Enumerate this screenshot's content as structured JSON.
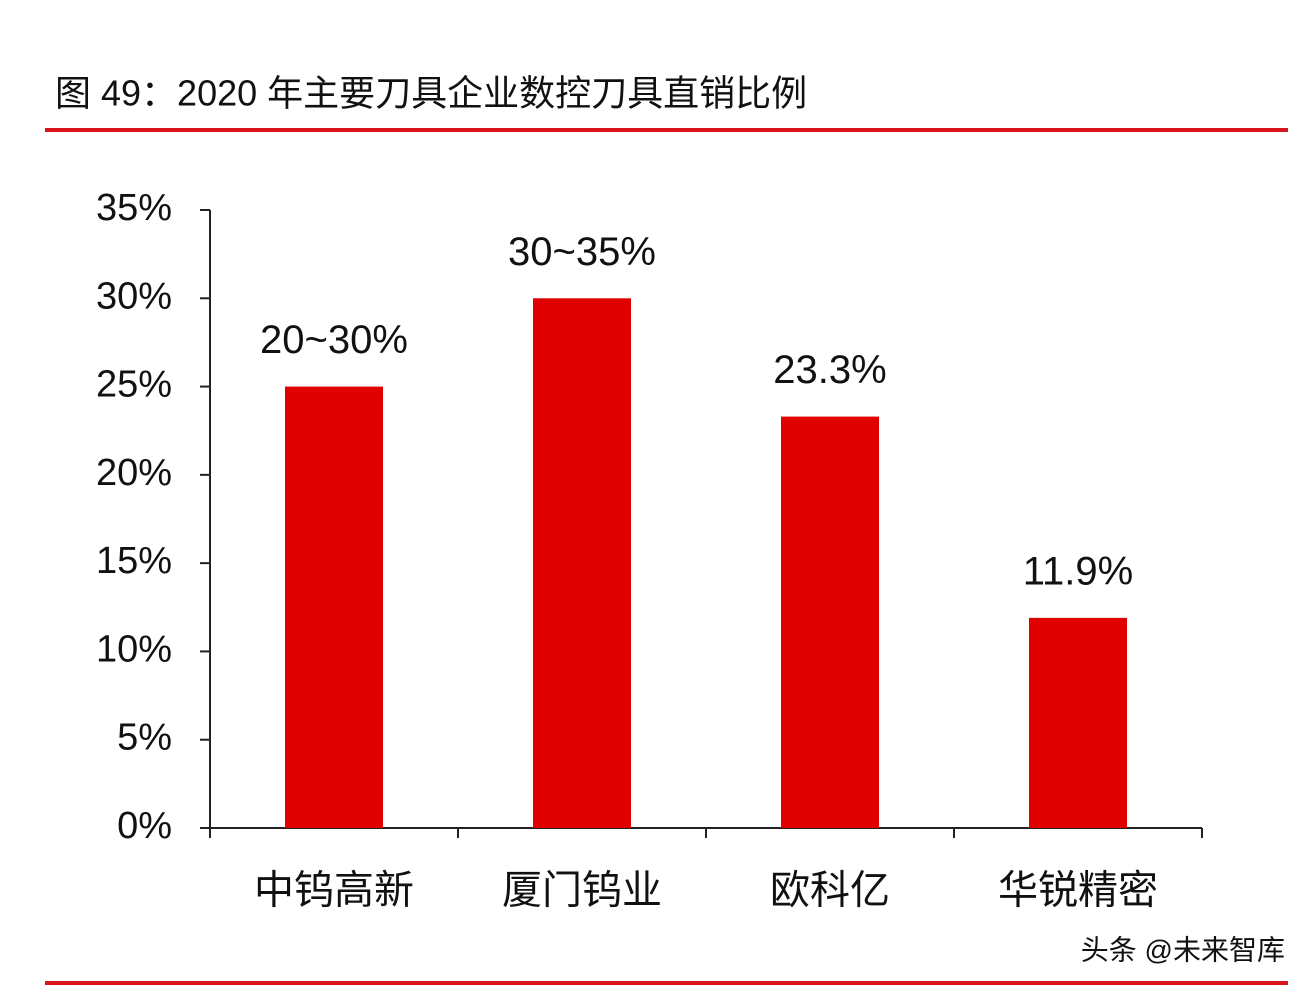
{
  "chart_data": {
    "type": "bar",
    "title": "图 49：2020 年主要刀具企业数控刀具直销比例",
    "categories": [
      "中钨高新",
      "厦门钨业",
      "欧科亿",
      "华锐精密"
    ],
    "values": [
      25,
      30,
      23.3,
      11.9
    ],
    "value_labels": [
      "20~30%",
      "30~35%",
      "23.3%",
      "11.9%"
    ],
    "color": "#e00000",
    "ylim": [
      0,
      35
    ],
    "yticks": [
      {
        "value": 0,
        "label": "0%"
      },
      {
        "value": 5,
        "label": "5%"
      },
      {
        "value": 10,
        "label": "10%"
      },
      {
        "value": 15,
        "label": "15%"
      },
      {
        "value": 20,
        "label": "20%"
      },
      {
        "value": 25,
        "label": "25%"
      },
      {
        "value": 30,
        "label": "30%"
      },
      {
        "value": 35,
        "label": "35%"
      }
    ],
    "grid": false,
    "watermark": "头条 @未来智库"
  }
}
